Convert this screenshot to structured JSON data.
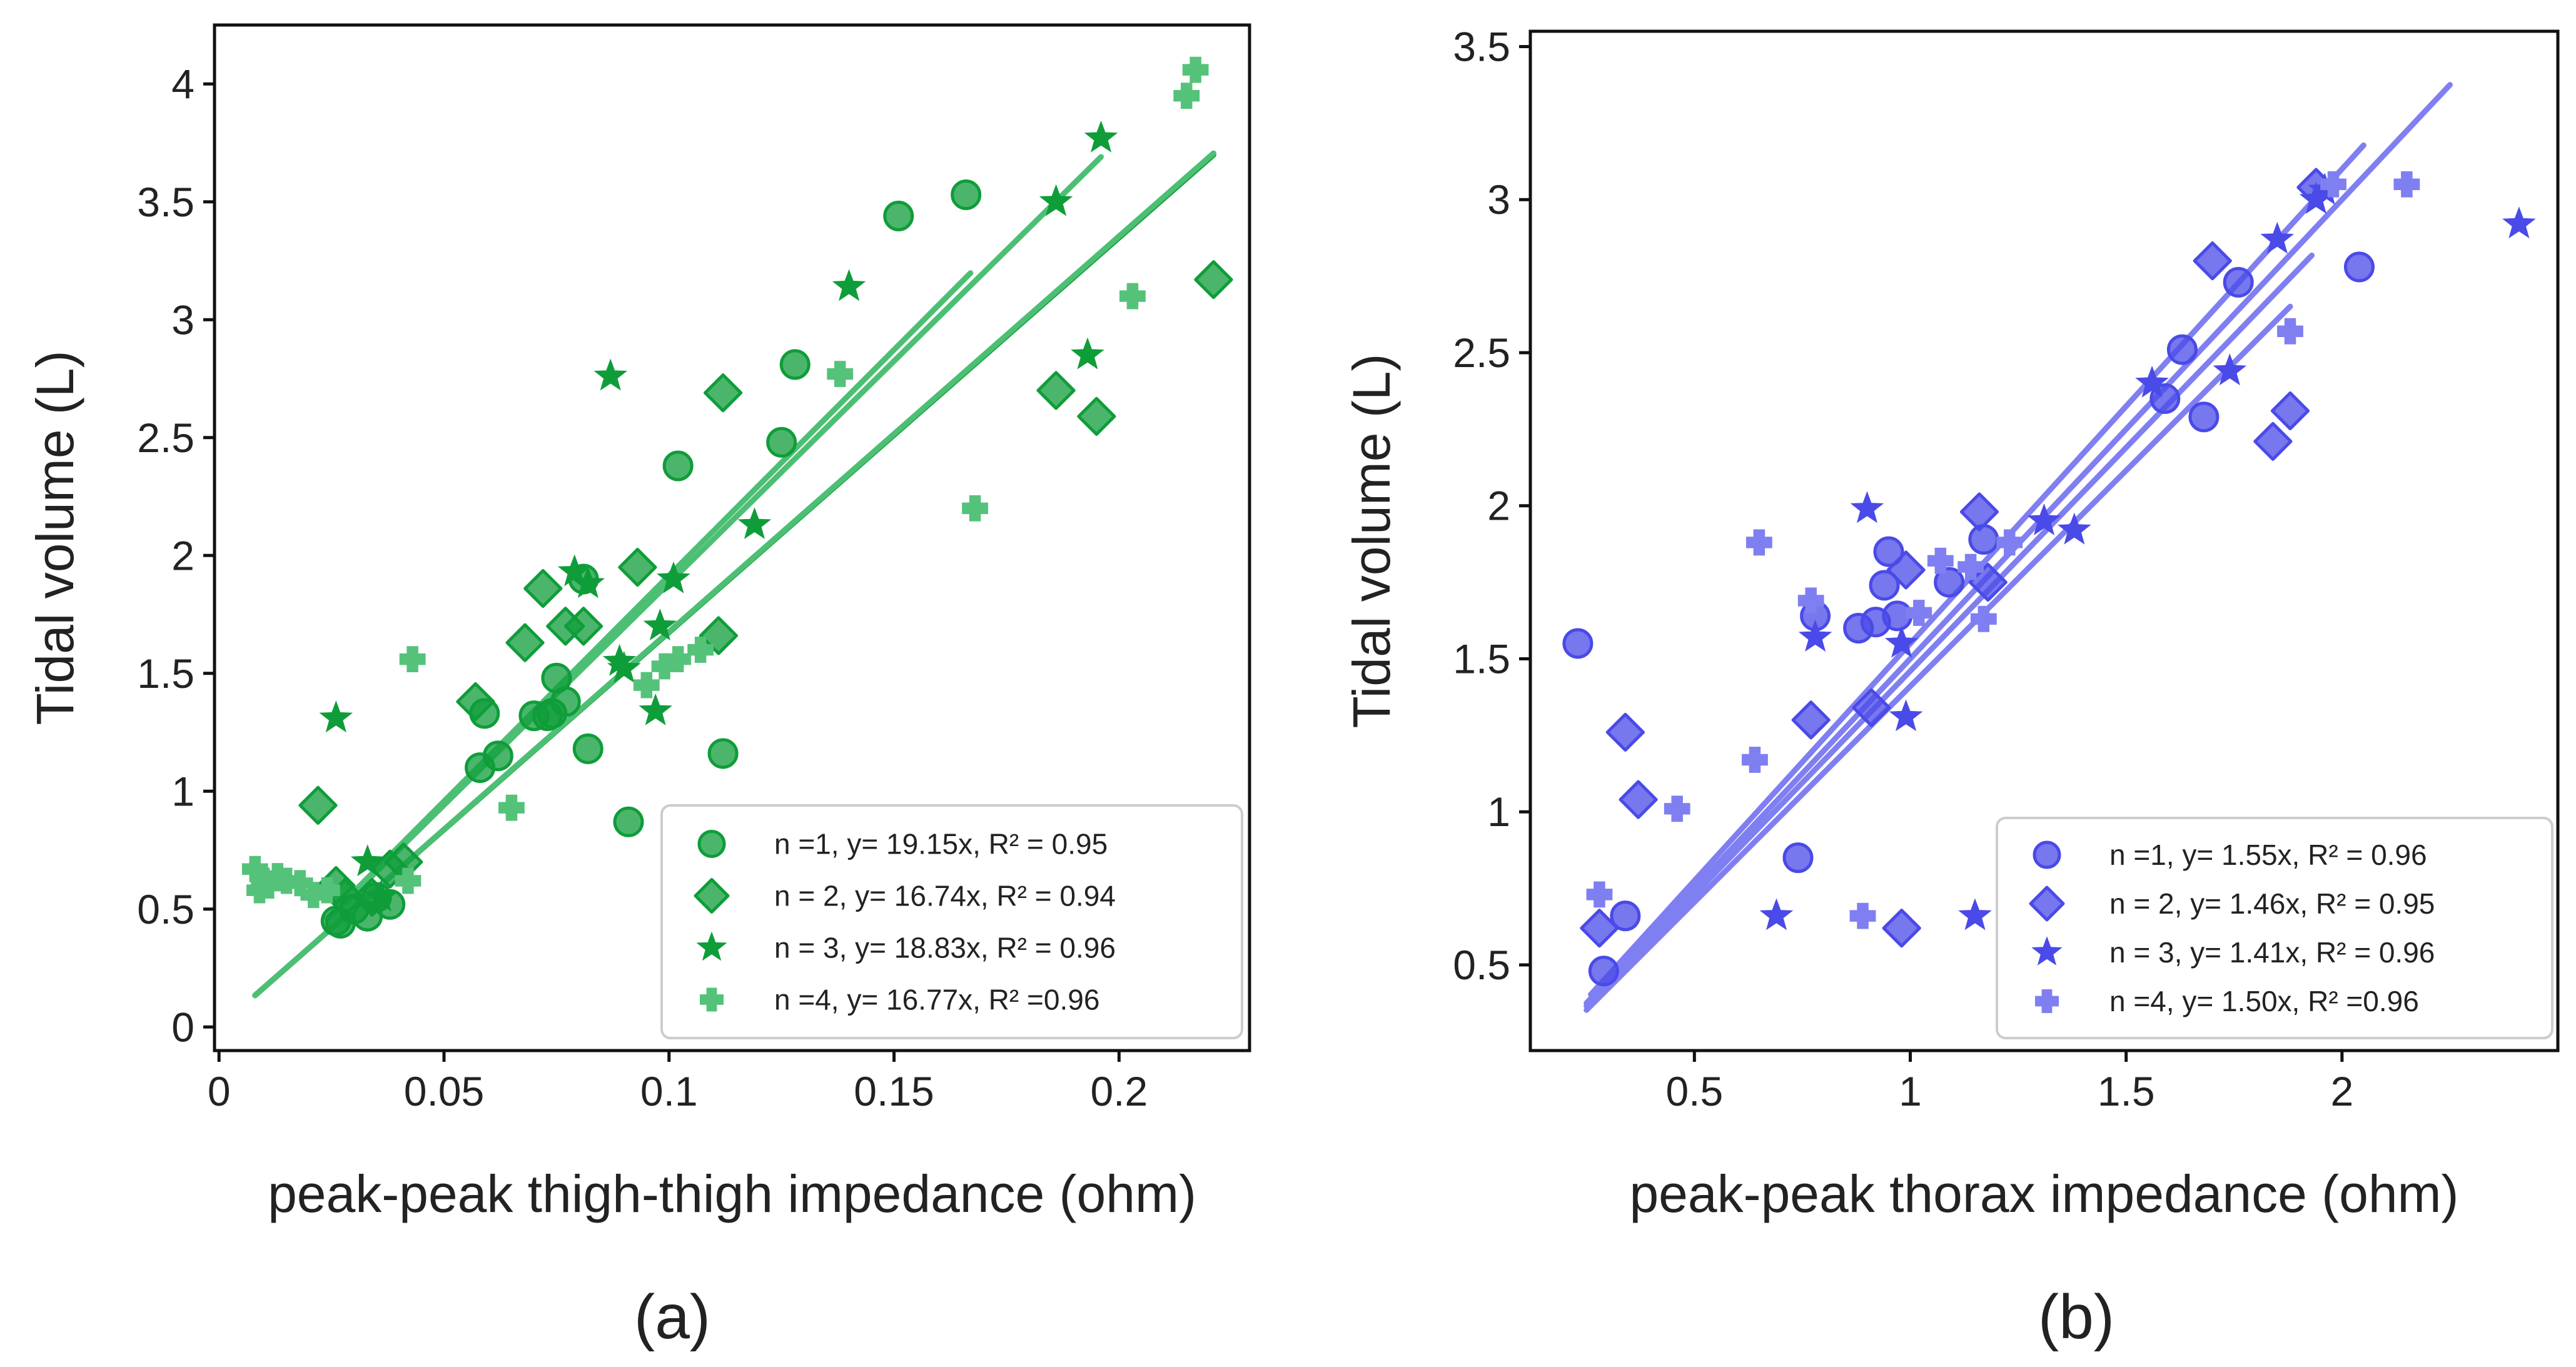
{
  "chart_data": [
    {
      "type": "scatter",
      "caption": "(a)",
      "xlabel": "peak-peak thigh-thigh impedance (ohm)",
      "ylabel": "Tidal volume (L)",
      "xlim": [
        -0.001,
        0.229
      ],
      "ylim": [
        -0.1,
        4.25
      ],
      "xticks": [
        0,
        0.05,
        0.1,
        0.15,
        0.2
      ],
      "xticklabels": [
        "0",
        "0.05",
        "0.1",
        "0.15",
        "0.2"
      ],
      "yticks": [
        0,
        0.5,
        1,
        1.5,
        2,
        2.5,
        3,
        3.5,
        4
      ],
      "yticklabels": [
        "0",
        "0.5",
        "1",
        "1.5",
        "2",
        "2.5",
        "3",
        "3.5",
        "4"
      ],
      "grid": false,
      "legend_position": "bottom-right",
      "series": [
        {
          "name": "n =1, y= 19.15x, R² = 0.95",
          "marker": "circle",
          "color": "#0f9d3a",
          "fit": {
            "slope": 19.15,
            "x_range": [
              0.024,
              0.167
            ],
            "color": "#4cbf74"
          },
          "points": [
            [
              0.026,
              0.45
            ],
            [
              0.027,
              0.44
            ],
            [
              0.03,
              0.5
            ],
            [
              0.033,
              0.47
            ],
            [
              0.035,
              0.55
            ],
            [
              0.038,
              0.52
            ],
            [
              0.058,
              1.1
            ],
            [
              0.059,
              1.33
            ],
            [
              0.062,
              1.15
            ],
            [
              0.07,
              1.32
            ],
            [
              0.073,
              1.32
            ],
            [
              0.074,
              1.33
            ],
            [
              0.075,
              1.48
            ],
            [
              0.077,
              1.38
            ],
            [
              0.081,
              1.9
            ],
            [
              0.082,
              1.18
            ],
            [
              0.091,
              0.87
            ],
            [
              0.102,
              2.38
            ],
            [
              0.112,
              1.16
            ],
            [
              0.125,
              2.48
            ],
            [
              0.128,
              2.81
            ],
            [
              0.151,
              3.44
            ],
            [
              0.166,
              3.53
            ]
          ]
        },
        {
          "name": "n = 2, y= 16.74x, R² = 0.94",
          "marker": "diamond",
          "color": "#0f9d3a",
          "fit": {
            "slope": 16.74,
            "x_range": [
              0.008,
              0.221
            ],
            "color": "#0f9d3a"
          },
          "points": [
            [
              0.022,
              0.94
            ],
            [
              0.026,
              0.6
            ],
            [
              0.028,
              0.55
            ],
            [
              0.034,
              0.55
            ],
            [
              0.038,
              0.67
            ],
            [
              0.041,
              0.7
            ],
            [
              0.057,
              1.38
            ],
            [
              0.068,
              1.63
            ],
            [
              0.072,
              1.86
            ],
            [
              0.077,
              1.7
            ],
            [
              0.081,
              1.7
            ],
            [
              0.093,
              1.95
            ],
            [
              0.111,
              1.66
            ],
            [
              0.112,
              2.69
            ],
            [
              0.186,
              2.7
            ],
            [
              0.195,
              2.59
            ],
            [
              0.221,
              3.17
            ]
          ]
        },
        {
          "name": "n = 3, y= 18.83x, R² = 0.96",
          "marker": "star",
          "color": "#0f9d3a",
          "fit": {
            "slope": 18.83,
            "x_range": [
              0.028,
              0.196
            ],
            "color": "#4cbf74"
          },
          "points": [
            [
              0.026,
              1.31
            ],
            [
              0.033,
              0.7
            ],
            [
              0.036,
              0.55
            ],
            [
              0.079,
              1.93
            ],
            [
              0.082,
              1.88
            ],
            [
              0.087,
              2.76
            ],
            [
              0.089,
              1.55
            ],
            [
              0.09,
              1.52
            ],
            [
              0.097,
              1.34
            ],
            [
              0.098,
              1.7
            ],
            [
              0.101,
              1.9
            ],
            [
              0.119,
              2.13
            ],
            [
              0.14,
              3.14
            ],
            [
              0.186,
              3.5
            ],
            [
              0.193,
              2.85
            ],
            [
              0.196,
              3.77
            ]
          ]
        },
        {
          "name": "n =4, y= 16.77x, R² =0.96",
          "marker": "plus",
          "color": "#55c27a",
          "fit": {
            "slope": 16.77,
            "x_range": [
              0.008,
              0.221
            ],
            "color": "#4cbf74"
          },
          "points": [
            [
              0.008,
              0.67
            ],
            [
              0.009,
              0.58
            ],
            [
              0.01,
              0.62
            ],
            [
              0.011,
              0.6
            ],
            [
              0.013,
              0.64
            ],
            [
              0.015,
              0.62
            ],
            [
              0.018,
              0.61
            ],
            [
              0.021,
              0.56
            ],
            [
              0.024,
              0.58
            ],
            [
              0.042,
              0.62
            ],
            [
              0.043,
              1.56
            ],
            [
              0.065,
              0.93
            ],
            [
              0.095,
              1.45
            ],
            [
              0.099,
              1.53
            ],
            [
              0.102,
              1.56
            ],
            [
              0.107,
              1.6
            ],
            [
              0.138,
              2.77
            ],
            [
              0.168,
              2.2
            ],
            [
              0.203,
              3.1
            ],
            [
              0.215,
              3.95
            ],
            [
              0.217,
              4.06
            ]
          ]
        }
      ]
    },
    {
      "type": "scatter",
      "caption": "(b)",
      "xlabel": "peak-peak thorax impedance (ohm)",
      "ylabel": "Tidal volume (L)",
      "xlim": [
        0.12,
        2.5
      ],
      "ylim": [
        0.22,
        3.55
      ],
      "xticks": [
        0.5,
        1,
        1.5,
        2
      ],
      "xticklabels": [
        "0.5",
        "1",
        "1.5",
        "2"
      ],
      "yticks": [
        0.5,
        1,
        1.5,
        2,
        2.5,
        3,
        3.5
      ],
      "yticklabels": [
        "0.5",
        "1",
        "1.5",
        "2",
        "2.5",
        "3",
        "3.5"
      ],
      "grid": false,
      "legend_position": "bottom-right",
      "series": [
        {
          "name": "n =1, y= 1.55x, R² = 0.96",
          "marker": "circle",
          "color": "#4a4ae8",
          "fit": {
            "slope": 1.55,
            "x_range": [
              0.26,
              2.05
            ],
            "color": "#7f7ff2"
          },
          "points": [
            [
              0.23,
              1.55
            ],
            [
              0.29,
              0.48
            ],
            [
              0.34,
              0.66
            ],
            [
              0.74,
              0.85
            ],
            [
              0.78,
              1.64
            ],
            [
              0.88,
              1.6
            ],
            [
              0.92,
              1.62
            ],
            [
              0.94,
              1.74
            ],
            [
              0.95,
              1.85
            ],
            [
              0.97,
              1.64
            ],
            [
              1.09,
              1.75
            ],
            [
              1.17,
              1.89
            ],
            [
              1.59,
              2.35
            ],
            [
              1.63,
              2.51
            ],
            [
              1.68,
              2.29
            ],
            [
              1.76,
              2.73
            ],
            [
              2.04,
              2.78
            ]
          ]
        },
        {
          "name": "n = 2, y= 1.46x, R² = 0.95",
          "marker": "diamond",
          "color": "#4a4ae8",
          "fit": {
            "slope": 1.46,
            "x_range": [
              0.25,
              1.93
            ],
            "color": "#7f7ff2"
          },
          "points": [
            [
              0.28,
              0.62
            ],
            [
              0.34,
              1.26
            ],
            [
              0.37,
              1.04
            ],
            [
              0.77,
              1.3
            ],
            [
              0.91,
              1.34
            ],
            [
              0.98,
              0.62
            ],
            [
              0.99,
              1.79
            ],
            [
              1.16,
              1.98
            ],
            [
              1.18,
              1.75
            ],
            [
              1.7,
              2.8
            ],
            [
              1.84,
              2.21
            ],
            [
              1.88,
              2.31
            ],
            [
              1.94,
              3.04
            ]
          ]
        },
        {
          "name": "n = 3, y= 1.41x, R² = 0.96",
          "marker": "star",
          "color": "#4a4ae8",
          "fit": {
            "slope": 1.41,
            "x_range": [
              0.25,
              1.88
            ],
            "color": "#7f7ff2"
          },
          "points": [
            [
              0.69,
              0.66
            ],
            [
              0.78,
              1.57
            ],
            [
              0.9,
              1.99
            ],
            [
              0.98,
              1.55
            ],
            [
              0.99,
              1.31
            ],
            [
              1.15,
              0.66
            ],
            [
              1.31,
              1.95
            ],
            [
              1.38,
              1.92
            ],
            [
              1.56,
              2.4
            ],
            [
              1.74,
              2.44
            ],
            [
              1.85,
              2.87
            ],
            [
              1.94,
              3.0
            ],
            [
              1.96,
              3.03
            ],
            [
              2.41,
              2.92
            ]
          ]
        },
        {
          "name": "n =4, y= 1.50x, R² =0.96",
          "marker": "plus",
          "color": "#7f7ff2",
          "fit": {
            "slope": 1.5,
            "x_range": [
              0.25,
              2.25
            ],
            "color": "#7f7ff2"
          },
          "points": [
            [
              0.28,
              0.73
            ],
            [
              0.46,
              1.01
            ],
            [
              0.64,
              1.17
            ],
            [
              0.65,
              1.88
            ],
            [
              0.77,
              1.69
            ],
            [
              0.89,
              0.66
            ],
            [
              1.02,
              1.65
            ],
            [
              1.07,
              1.82
            ],
            [
              1.14,
              1.8
            ],
            [
              1.17,
              1.63
            ],
            [
              1.23,
              1.88
            ],
            [
              1.88,
              2.57
            ],
            [
              1.98,
              3.05
            ],
            [
              2.15,
              3.05
            ]
          ]
        }
      ]
    }
  ]
}
